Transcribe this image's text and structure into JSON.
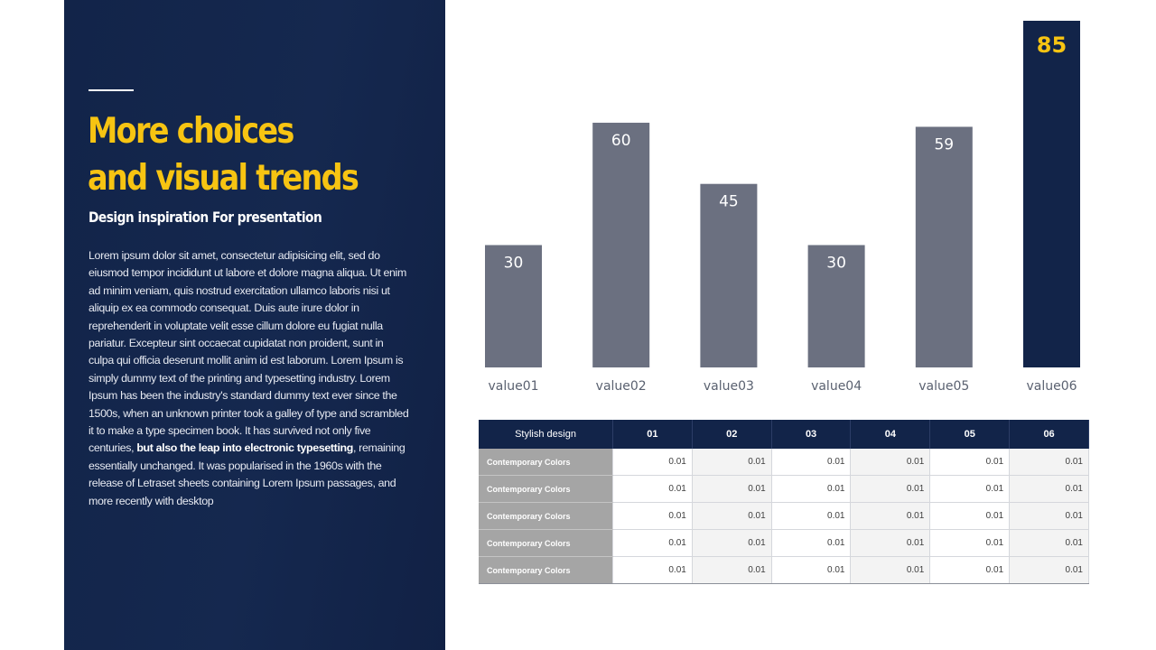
{
  "left_panel": {
    "title_line1": "More choices",
    "title_line2": "and visual trends",
    "subtitle": "Design inspiration For presentation",
    "body_before_bold": "Lorem ipsum dolor sit amet, consectetur adipisicing elit, sed do eiusmod tempor incididunt ut labore et dolore magna aliqua. Ut enim ad minim veniam, quis nostrud exercitation ullamco laboris nisi ut aliquip ex ea commodo consequat. Duis aute irure dolor in reprehenderit in voluptate velit esse cillum dolore eu fugiat nulla pariatur. Excepteur sint occaecat cupidatat non proident, sunt in culpa qui officia deserunt mollit anim id est laborum. Lorem Ipsum is simply dummy text of the printing and typesetting industry. Lorem Ipsum has been the industry's standard dummy text ever since the 1500s, when an unknown printer took a galley of type and scrambled it to make a type specimen book. It has survived not only five centuries, ",
    "body_bold": "but also the leap into electronic typesetting",
    "body_after_bold": ", remaining essentially unchanged. It was popularised in the 1960s with the release of Letraset sheets containing Lorem Ipsum passages, and more recently with desktop"
  },
  "colors": {
    "navy": "#122449",
    "accent_yellow": "#f7c412",
    "bar_gray": "#6b7080",
    "row_head_gray": "#a5a5a5"
  },
  "chart_data": {
    "type": "bar",
    "categories": [
      "value01",
      "value02",
      "value03",
      "value04",
      "value05",
      "value06"
    ],
    "values": [
      30,
      60,
      45,
      30,
      59,
      85
    ],
    "highlight_index": 5,
    "ylim": [
      0,
      85
    ],
    "grid": false,
    "legend": "none"
  },
  "table": {
    "corner_header": "Stylish design",
    "column_headers": [
      "01",
      "02",
      "03",
      "04",
      "05",
      "06"
    ],
    "rows": [
      {
        "label": "Contemporary Colors",
        "values": [
          "0.01",
          "0.01",
          "0.01",
          "0.01",
          "0.01",
          "0.01"
        ]
      },
      {
        "label": "Contemporary Colors",
        "values": [
          "0.01",
          "0.01",
          "0.01",
          "0.01",
          "0.01",
          "0.01"
        ]
      },
      {
        "label": "Contemporary Colors",
        "values": [
          "0.01",
          "0.01",
          "0.01",
          "0.01",
          "0.01",
          "0.01"
        ]
      },
      {
        "label": "Contemporary Colors",
        "values": [
          "0.01",
          "0.01",
          "0.01",
          "0.01",
          "0.01",
          "0.01"
        ]
      },
      {
        "label": "Contemporary Colors",
        "values": [
          "0.01",
          "0.01",
          "0.01",
          "0.01",
          "0.01",
          "0.01"
        ]
      }
    ]
  }
}
